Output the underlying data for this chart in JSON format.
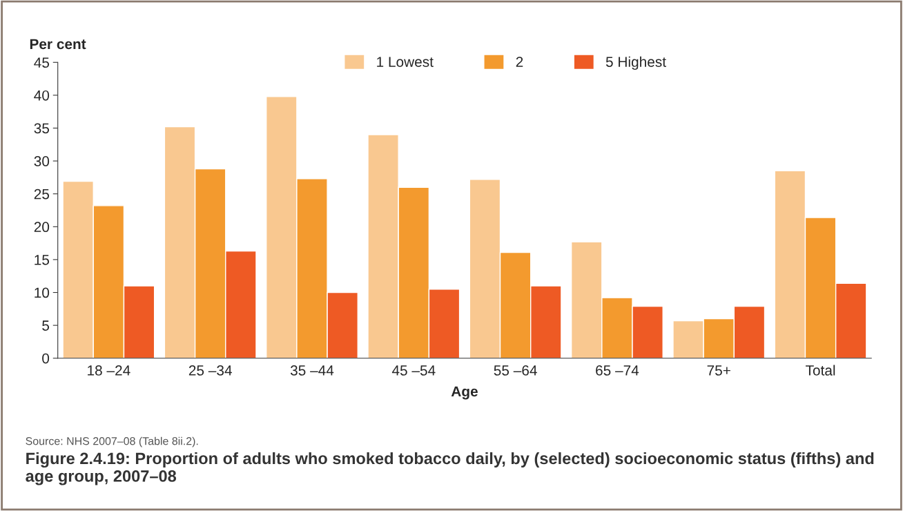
{
  "chart_data": {
    "type": "bar",
    "title": "Figure 2.4.19: Proportion of adults who smoked tobacco daily, by (selected) socioeconomic status (fifths) and age group, 2007–08",
    "ylabel": "Per cent",
    "xlabel": "Age",
    "categories": [
      "18 –24",
      "25 –34",
      "35 –44",
      "45 –54",
      "55 –64",
      "65 –74",
      "75+",
      "Total"
    ],
    "series": [
      {
        "name": "1 Lowest",
        "color": "#f9c890",
        "values": [
          26.9,
          35.2,
          39.8,
          34.0,
          27.2,
          17.7,
          5.7,
          28.5
        ]
      },
      {
        "name": "2",
        "color": "#f39a2e",
        "values": [
          23.2,
          28.8,
          27.3,
          26.0,
          16.1,
          9.2,
          6.0,
          21.4
        ]
      },
      {
        "name": "5 Highest",
        "color": "#ee5a24",
        "values": [
          11.0,
          16.3,
          10.0,
          10.5,
          11.0,
          7.9,
          7.9,
          11.4
        ]
      }
    ],
    "ylim": [
      0,
      45
    ],
    "yticks": [
      0,
      5,
      10,
      15,
      20,
      25,
      30,
      35,
      40,
      45
    ],
    "grid": false,
    "legend": "top",
    "annotations": [
      "Source: NHS 2007–08 (Table 8ii.2)."
    ]
  }
}
